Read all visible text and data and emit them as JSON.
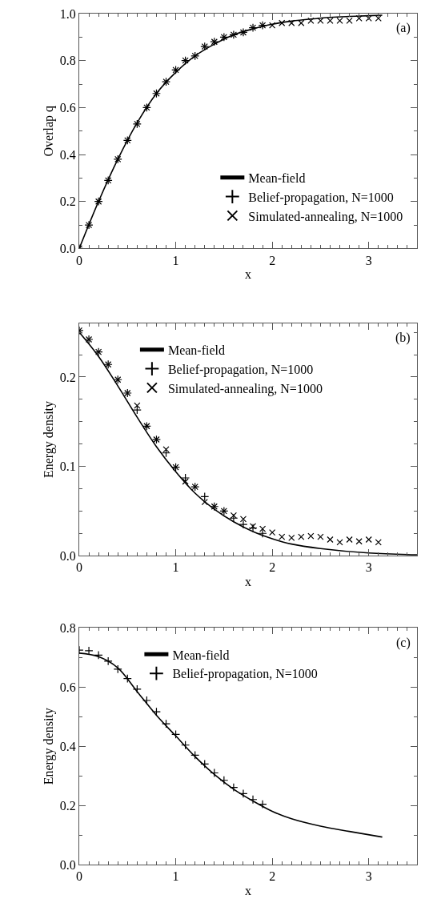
{
  "chart_data": [
    {
      "type": "line",
      "xlabel": "x",
      "ylabel": "Overlap q",
      "annotations": [
        "(a)"
      ],
      "legend": "bottom right",
      "xlim": [
        0,
        3.5
      ],
      "ylim": [
        0,
        1.0
      ],
      "xticks": [
        0,
        {
          "value": 0.1,
          "label": null
        },
        {
          "value": 0.2,
          "label": null
        },
        {
          "value": 0.3,
          "label": null
        },
        {
          "value": 0.4,
          "label": null
        },
        {
          "value": 0.5,
          "label": null
        },
        {
          "value": 0.6,
          "label": null
        },
        {
          "value": 0.7,
          "label": null
        },
        {
          "value": 0.8,
          "label": null
        },
        {
          "value": 0.9,
          "label": null
        },
        1,
        {
          "value": 1.1,
          "label": null
        },
        {
          "value": 1.2,
          "label": null
        },
        {
          "value": 1.3,
          "label": null
        },
        {
          "value": 1.4,
          "label": null
        },
        {
          "value": 1.5,
          "label": null
        },
        {
          "value": 1.6,
          "label": null
        },
        {
          "value": 1.7,
          "label": null
        },
        {
          "value": 1.8,
          "label": null
        },
        {
          "value": 1.9,
          "label": null
        },
        2,
        {
          "value": 2.1,
          "label": null
        },
        {
          "value": 2.2,
          "label": null
        },
        {
          "value": 2.3,
          "label": null
        },
        {
          "value": 2.4,
          "label": null
        },
        {
          "value": 2.5,
          "label": null
        },
        {
          "value": 2.6,
          "label": null
        },
        {
          "value": 2.7,
          "label": null
        },
        {
          "value": 2.8,
          "label": null
        },
        {
          "value": 2.9,
          "label": null
        },
        3,
        {
          "value": 3.1,
          "label": null
        },
        {
          "value": 3.2,
          "label": null
        },
        {
          "value": 3.3,
          "label": null
        },
        {
          "value": 3.4,
          "label": null
        }
      ],
      "yticks": [
        {
          "value": 0,
          "label": "0.0"
        },
        {
          "value": 0.1,
          "label": null
        },
        0.2,
        {
          "value": 0.3,
          "label": null
        },
        0.4,
        {
          "value": 0.5,
          "label": null
        },
        0.6,
        {
          "value": 0.7,
          "label": null
        },
        0.8,
        {
          "value": 0.9,
          "label": null
        },
        {
          "value": 1.0,
          "label": "1.0"
        }
      ],
      "series": [
        {
          "name": "Mean-field",
          "type": "line",
          "color": "#000000",
          "marker": "none",
          "line_style": "solid",
          "x": [
            0,
            0.2,
            0.4,
            0.6,
            0.8,
            1.0,
            1.2,
            1.4,
            1.6,
            1.8,
            2.0,
            2.2,
            2.4,
            2.6,
            2.8,
            3.0,
            3.14
          ],
          "values": [
            0,
            0.2,
            0.38,
            0.535,
            0.66,
            0.75,
            0.82,
            0.87,
            0.91,
            0.935,
            0.955,
            0.968,
            0.977,
            0.984,
            0.988,
            0.991,
            0.993
          ]
        },
        {
          "name": "Belief-propagation, N=1000",
          "type": "scatter",
          "color": "#000000",
          "marker": "cross",
          "x": [
            0,
            0.1,
            0.2,
            0.3,
            0.4,
            0.5,
            0.6,
            0.7,
            0.8,
            0.9,
            1.0,
            1.1,
            1.2,
            1.3,
            1.4,
            1.5,
            1.6,
            1.7,
            1.8,
            1.9
          ],
          "values": [
            0,
            0.1,
            0.2,
            0.29,
            0.38,
            0.46,
            0.53,
            0.6,
            0.66,
            0.71,
            0.76,
            0.8,
            0.82,
            0.86,
            0.88,
            0.9,
            0.91,
            0.92,
            0.94,
            0.95
          ]
        },
        {
          "name": "Simulated-annealing, N=1000",
          "type": "scatter",
          "color": "#000000",
          "marker": "x",
          "x": [
            0,
            0.1,
            0.2,
            0.3,
            0.4,
            0.5,
            0.6,
            0.7,
            0.8,
            0.9,
            1.0,
            1.1,
            1.2,
            1.3,
            1.4,
            1.5,
            1.6,
            1.7,
            1.8,
            1.9,
            2.0,
            2.1,
            2.2,
            2.3,
            2.4,
            2.5,
            2.6,
            2.7,
            2.8,
            2.9,
            3.0,
            3.1
          ],
          "values": [
            0,
            0.1,
            0.2,
            0.29,
            0.38,
            0.46,
            0.53,
            0.6,
            0.66,
            0.71,
            0.76,
            0.8,
            0.82,
            0.86,
            0.88,
            0.9,
            0.91,
            0.92,
            0.94,
            0.95,
            0.95,
            0.96,
            0.96,
            0.96,
            0.97,
            0.97,
            0.97,
            0.97,
            0.97,
            0.98,
            0.98,
            0.98
          ]
        }
      ]
    },
    {
      "type": "line",
      "xlabel": "x",
      "ylabel": "Energy density",
      "annotations": [
        "(b)"
      ],
      "legend": "top",
      "xlim": [
        0,
        3.5
      ],
      "ylim": [
        0,
        0.26
      ],
      "xticks": [
        0,
        {
          "value": 0.1,
          "label": null
        },
        {
          "value": 0.2,
          "label": null
        },
        {
          "value": 0.3,
          "label": null
        },
        {
          "value": 0.4,
          "label": null
        },
        {
          "value": 0.5,
          "label": null
        },
        {
          "value": 0.6,
          "label": null
        },
        {
          "value": 0.7,
          "label": null
        },
        {
          "value": 0.8,
          "label": null
        },
        {
          "value": 0.9,
          "label": null
        },
        1,
        {
          "value": 1.1,
          "label": null
        },
        {
          "value": 1.2,
          "label": null
        },
        {
          "value": 1.3,
          "label": null
        },
        {
          "value": 1.4,
          "label": null
        },
        {
          "value": 1.5,
          "label": null
        },
        {
          "value": 1.6,
          "label": null
        },
        {
          "value": 1.7,
          "label": null
        },
        {
          "value": 1.8,
          "label": null
        },
        {
          "value": 1.9,
          "label": null
        },
        2,
        {
          "value": 2.1,
          "label": null
        },
        {
          "value": 2.2,
          "label": null
        },
        {
          "value": 2.3,
          "label": null
        },
        {
          "value": 2.4,
          "label": null
        },
        {
          "value": 2.5,
          "label": null
        },
        {
          "value": 2.6,
          "label": null
        },
        {
          "value": 2.7,
          "label": null
        },
        {
          "value": 2.8,
          "label": null
        },
        {
          "value": 2.9,
          "label": null
        },
        3,
        {
          "value": 3.1,
          "label": null
        },
        {
          "value": 3.2,
          "label": null
        },
        {
          "value": 3.3,
          "label": null
        },
        {
          "value": 3.4,
          "label": null
        }
      ],
      "yticks": [
        {
          "value": 0,
          "label": "0.0"
        },
        {
          "value": 0.025,
          "label": null
        },
        {
          "value": 0.05,
          "label": null
        },
        {
          "value": 0.075,
          "label": null
        },
        0.1,
        {
          "value": 0.125,
          "label": null
        },
        {
          "value": 0.15,
          "label": null
        },
        {
          "value": 0.175,
          "label": null
        },
        0.2,
        {
          "value": 0.225,
          "label": null
        },
        {
          "value": 0.25,
          "label": null
        }
      ],
      "series": [
        {
          "name": "Mean-field",
          "type": "line",
          "color": "#000000",
          "marker": "none",
          "line_style": "solid",
          "x": [
            0,
            0.2,
            0.4,
            0.6,
            0.8,
            1.0,
            1.2,
            1.4,
            1.6,
            1.8,
            2.0,
            2.2,
            2.5,
            3.0,
            3.5
          ],
          "values": [
            0.25,
            0.223,
            0.19,
            0.155,
            0.122,
            0.094,
            0.07,
            0.052,
            0.038,
            0.027,
            0.019,
            0.013,
            0.008,
            0.003,
            0.001
          ]
        },
        {
          "name": "Belief-propagation, N=1000",
          "type": "scatter",
          "color": "#000000",
          "marker": "cross",
          "x": [
            0,
            0.1,
            0.2,
            0.3,
            0.4,
            0.5,
            0.6,
            0.7,
            0.8,
            0.9,
            1.0,
            1.1,
            1.2,
            1.3,
            1.4,
            1.5,
            1.6,
            1.7,
            1.8,
            1.9
          ],
          "values": [
            0.252,
            0.242,
            0.228,
            0.214,
            0.197,
            0.182,
            0.163,
            0.145,
            0.13,
            0.115,
            0.099,
            0.087,
            0.077,
            0.066,
            0.055,
            0.05,
            0.042,
            0.035,
            0.031,
            0.025
          ]
        },
        {
          "name": "Simulated-annealing, N=1000",
          "type": "scatter",
          "color": "#000000",
          "marker": "x",
          "x": [
            0,
            0.1,
            0.2,
            0.3,
            0.4,
            0.5,
            0.6,
            0.7,
            0.8,
            0.9,
            1.0,
            1.1,
            1.2,
            1.3,
            1.4,
            1.5,
            1.6,
            1.7,
            1.8,
            1.9,
            2.0,
            2.1,
            2.2,
            2.3,
            2.4,
            2.5,
            2.6,
            2.7,
            2.8,
            2.9,
            3.0,
            3.1
          ],
          "values": [
            0.252,
            0.242,
            0.228,
            0.214,
            0.197,
            0.182,
            0.168,
            0.145,
            0.13,
            0.119,
            0.099,
            0.083,
            0.077,
            0.06,
            0.055,
            0.05,
            0.045,
            0.041,
            0.033,
            0.03,
            0.026,
            0.021,
            0.02,
            0.021,
            0.022,
            0.021,
            0.018,
            0.015,
            0.018,
            0.016,
            0.018,
            0.015
          ]
        }
      ]
    },
    {
      "type": "line",
      "xlabel": "x",
      "ylabel": "Energy density",
      "annotations": [
        "(c)"
      ],
      "legend": "top",
      "xlim": [
        0,
        3.5
      ],
      "ylim": [
        0,
        0.8
      ],
      "xticks": [
        0,
        {
          "value": 0.1,
          "label": null
        },
        {
          "value": 0.2,
          "label": null
        },
        {
          "value": 0.3,
          "label": null
        },
        {
          "value": 0.4,
          "label": null
        },
        {
          "value": 0.5,
          "label": null
        },
        {
          "value": 0.6,
          "label": null
        },
        {
          "value": 0.7,
          "label": null
        },
        {
          "value": 0.8,
          "label": null
        },
        {
          "value": 0.9,
          "label": null
        },
        1,
        {
          "value": 1.1,
          "label": null
        },
        {
          "value": 1.2,
          "label": null
        },
        {
          "value": 1.3,
          "label": null
        },
        {
          "value": 1.4,
          "label": null
        },
        {
          "value": 1.5,
          "label": null
        },
        {
          "value": 1.6,
          "label": null
        },
        {
          "value": 1.7,
          "label": null
        },
        {
          "value": 1.8,
          "label": null
        },
        {
          "value": 1.9,
          "label": null
        },
        2,
        {
          "value": 2.1,
          "label": null
        },
        {
          "value": 2.2,
          "label": null
        },
        {
          "value": 2.3,
          "label": null
        },
        {
          "value": 2.4,
          "label": null
        },
        {
          "value": 2.5,
          "label": null
        },
        {
          "value": 2.6,
          "label": null
        },
        {
          "value": 2.7,
          "label": null
        },
        {
          "value": 2.8,
          "label": null
        },
        {
          "value": 2.9,
          "label": null
        },
        3,
        {
          "value": 3.1,
          "label": null
        },
        {
          "value": 3.2,
          "label": null
        },
        {
          "value": 3.3,
          "label": null
        },
        {
          "value": 3.4,
          "label": null
        }
      ],
      "yticks": [
        {
          "value": 0,
          "label": "0.0"
        },
        {
          "value": 0.1,
          "label": null
        },
        0.2,
        {
          "value": 0.3,
          "label": null
        },
        0.4,
        {
          "value": 0.5,
          "label": null
        },
        0.6,
        {
          "value": 0.7,
          "label": null
        },
        0.8
      ],
      "series": [
        {
          "name": "Mean-field",
          "type": "line",
          "color": "#000000",
          "marker": "none",
          "line_style": "solid",
          "x": [
            0,
            0.2,
            0.4,
            0.6,
            0.8,
            1.0,
            1.2,
            1.4,
            1.6,
            1.8,
            2.0,
            2.2,
            2.5,
            2.8,
            3.14
          ],
          "values": [
            0.715,
            0.703,
            0.665,
            0.585,
            0.505,
            0.435,
            0.365,
            0.305,
            0.255,
            0.215,
            0.18,
            0.155,
            0.13,
            0.112,
            0.093
          ]
        },
        {
          "name": "Belief-propagation, N=1000",
          "type": "scatter",
          "color": "#000000",
          "marker": "cross",
          "x": [
            0,
            0.1,
            0.2,
            0.3,
            0.4,
            0.5,
            0.6,
            0.7,
            0.8,
            0.9,
            1.0,
            1.1,
            1.2,
            1.3,
            1.4,
            1.5,
            1.6,
            1.7,
            1.8,
            1.9
          ],
          "values": [
            0.725,
            0.723,
            0.708,
            0.688,
            0.661,
            0.629,
            0.593,
            0.555,
            0.517,
            0.476,
            0.44,
            0.404,
            0.37,
            0.34,
            0.31,
            0.285,
            0.261,
            0.24,
            0.22,
            0.204
          ]
        }
      ]
    }
  ]
}
